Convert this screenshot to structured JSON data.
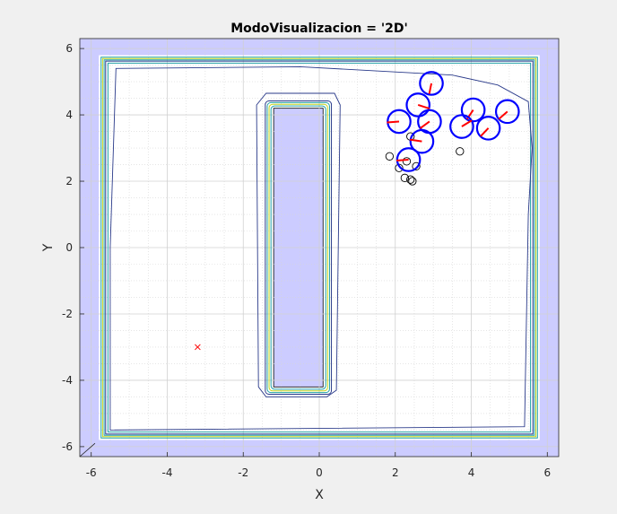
{
  "chart_data": {
    "type": "scatter",
    "title": "ModoVisualizacion = '2D'",
    "xlabel": "X",
    "ylabel": "Y",
    "xlim": [
      -6.3,
      6.3
    ],
    "ylim": [
      -6.3,
      6.3
    ],
    "xticks": [
      -6,
      -4,
      -2,
      0,
      2,
      4,
      6
    ],
    "yticks": [
      -6,
      -4,
      -2,
      0,
      2,
      4,
      6
    ],
    "xtick_labels": [
      "-6",
      "-4",
      "-2",
      "0",
      "2",
      "4",
      "6"
    ],
    "ytick_labels": [
      "-6",
      "-4",
      "-2",
      "0",
      "2",
      "4",
      "6"
    ],
    "grid": true,
    "minor_grid": true,
    "colors": {
      "obstacle_fill": "#ccccff",
      "agent_circle": "#0000ff",
      "heading": "#ff0000",
      "target": "#ff0000",
      "contour_outer": "#2a3a8a",
      "contour_mid": "#21a0a8",
      "contour_inner": "#c8d61e"
    },
    "walls": {
      "outer": [
        -6.3,
        -6.3,
        6.3,
        6.3
      ],
      "inner": [
        -5.8,
        -5.8,
        5.8,
        5.8
      ]
    },
    "pillar": [
      -1.2,
      -4.2,
      0.1,
      4.2
    ],
    "target": [
      -3.2,
      -3.0
    ],
    "agents": [
      {
        "x": 2.95,
        "y": 4.95,
        "heading": -100
      },
      {
        "x": 2.6,
        "y": 4.3,
        "heading": -20
      },
      {
        "x": 2.1,
        "y": 3.8,
        "heading": -175
      },
      {
        "x": 2.9,
        "y": 3.8,
        "heading": -140
      },
      {
        "x": 2.7,
        "y": 3.2,
        "heading": 170
      },
      {
        "x": 2.35,
        "y": 2.65,
        "heading": 185
      },
      {
        "x": 4.05,
        "y": 4.15,
        "heading": -120
      },
      {
        "x": 3.75,
        "y": 3.65,
        "heading": 35
      },
      {
        "x": 4.45,
        "y": 3.6,
        "heading": -130
      },
      {
        "x": 4.95,
        "y": 4.1,
        "heading": -135
      }
    ],
    "markers": [
      [
        2.4,
        3.35
      ],
      [
        1.85,
        2.75
      ],
      [
        2.1,
        2.4
      ],
      [
        2.55,
        2.45
      ],
      [
        2.25,
        2.1
      ],
      [
        2.4,
        2.05
      ],
      [
        2.45,
        2.0
      ],
      [
        3.7,
        2.9
      ],
      [
        2.3,
        2.6
      ]
    ]
  }
}
